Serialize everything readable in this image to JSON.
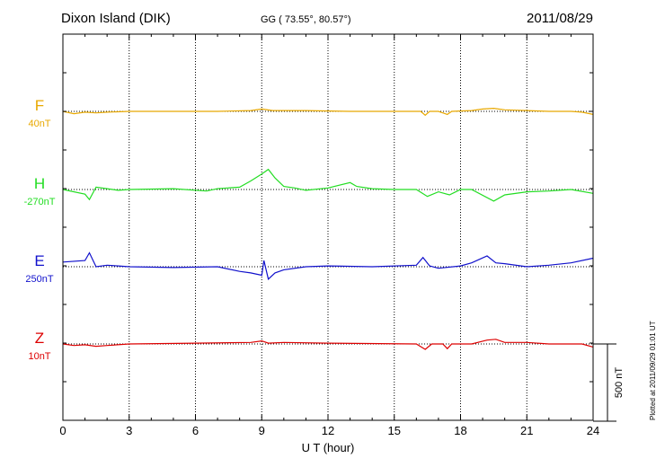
{
  "header": {
    "station": "Dixon Island (DIK)",
    "coords": "GG ( 73.55°,  80.57°)",
    "date": "2011/08/29"
  },
  "plotted_note": "Plotted at 2011/09/29 01:01 UT",
  "chart_data": {
    "type": "line",
    "xlabel": "U T (hour)",
    "xlim": [
      0,
      24
    ],
    "xticks": [
      0,
      3,
      6,
      9,
      12,
      15,
      18,
      21,
      24
    ],
    "scale_bar_label": "500 nT",
    "scale_bar_nT": 500,
    "grid": "dotted vertical",
    "series": [
      {
        "name": "F",
        "baseline": "40nT",
        "color": "#e8a800",
        "x": [
          0,
          0.5,
          1.0,
          1.5,
          2.0,
          3.0,
          5.0,
          7.0,
          8.5,
          9.0,
          9.5,
          11.0,
          13.0,
          15.0,
          16.2,
          16.4,
          16.6,
          17.0,
          17.4,
          17.6,
          18.5,
          19.0,
          19.5,
          20.0,
          21.0,
          22.0,
          23.0,
          23.5,
          24.0
        ],
        "values": [
          0,
          -15,
          -5,
          -10,
          -5,
          0,
          0,
          0,
          5,
          15,
          5,
          5,
          0,
          0,
          0,
          -25,
          0,
          0,
          -20,
          0,
          5,
          15,
          20,
          10,
          5,
          0,
          0,
          -5,
          -20
        ]
      },
      {
        "name": "H",
        "baseline": "-270nT",
        "color": "#22dd22",
        "x": [
          0,
          1.0,
          1.2,
          1.5,
          2.0,
          2.5,
          3.0,
          5.0,
          6.5,
          7.0,
          8.0,
          8.5,
          9.0,
          9.3,
          9.6,
          10.0,
          10.5,
          11.0,
          12.0,
          13.0,
          13.3,
          14.0,
          15.0,
          16.0,
          16.5,
          17.0,
          17.5,
          18.0,
          18.5,
          19.5,
          20.0,
          21.0,
          22.0,
          23.0,
          24.0
        ],
        "values": [
          0,
          -30,
          -65,
          15,
          5,
          -5,
          0,
          5,
          -10,
          5,
          15,
          55,
          100,
          130,
          75,
          20,
          10,
          -5,
          10,
          45,
          20,
          5,
          0,
          0,
          -45,
          -15,
          -35,
          0,
          0,
          -75,
          -35,
          -15,
          -10,
          0,
          -25
        ]
      },
      {
        "name": "E",
        "baseline": "250nT",
        "color": "#1111cc",
        "x": [
          0,
          1.0,
          1.2,
          1.5,
          2.0,
          2.5,
          3.0,
          5.0,
          7.0,
          8.0,
          8.5,
          9.0,
          9.1,
          9.3,
          9.6,
          10.0,
          11.0,
          12.0,
          14.0,
          16.0,
          16.3,
          16.6,
          17.0,
          18.0,
          18.5,
          19.2,
          19.6,
          20.0,
          21.0,
          22.0,
          23.0,
          24.0
        ],
        "values": [
          30,
          40,
          90,
          0,
          10,
          5,
          0,
          -5,
          0,
          -30,
          -40,
          -55,
          40,
          -80,
          -40,
          -20,
          0,
          5,
          0,
          10,
          60,
          5,
          -10,
          5,
          25,
          70,
          25,
          20,
          0,
          10,
          25,
          55
        ]
      },
      {
        "name": "Z",
        "baseline": "10nT",
        "color": "#dd0000",
        "x": [
          0,
          0.5,
          1.0,
          1.5,
          2.0,
          3.0,
          6.0,
          8.5,
          9.0,
          9.3,
          10.0,
          12.0,
          16.0,
          16.4,
          16.7,
          17.2,
          17.4,
          17.6,
          18.5,
          19.2,
          19.6,
          20.0,
          21.0,
          22.0,
          23.5,
          24.0
        ],
        "values": [
          0,
          -10,
          -5,
          -15,
          -10,
          0,
          5,
          10,
          20,
          5,
          10,
          5,
          0,
          -35,
          0,
          0,
          -30,
          0,
          0,
          25,
          30,
          10,
          10,
          0,
          0,
          -20
        ]
      }
    ]
  }
}
